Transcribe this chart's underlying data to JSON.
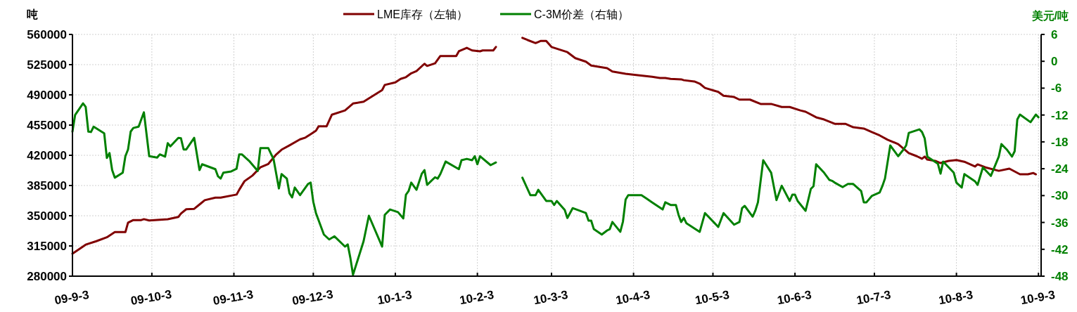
{
  "chart_data": {
    "type": "line",
    "ylabel": "吨",
    "y2label": "美元/吨",
    "legend": "top",
    "grid": true,
    "line_style": "solid",
    "marker": "none",
    "xlim": [
      "2009-09-03",
      "2010-09-04"
    ],
    "xticks": [
      {
        "value": "2009-09-03",
        "label": "09-9-3"
      },
      {
        "value": "2009-10-03",
        "label": "09-10-3"
      },
      {
        "value": "2009-11-03",
        "label": "09-11-3"
      },
      {
        "value": "2009-12-03",
        "label": "09-12-3"
      },
      {
        "value": "2010-01-03",
        "label": "10-1-3"
      },
      {
        "value": "2010-02-03",
        "label": "10-2-3"
      },
      {
        "value": "2010-03-03",
        "label": "10-3-3"
      },
      {
        "value": "2010-04-03",
        "label": "10-4-3"
      },
      {
        "value": "2010-05-03",
        "label": "10-5-3"
      },
      {
        "value": "2010-06-03",
        "label": "10-6-3"
      },
      {
        "value": "2010-07-03",
        "label": "10-7-3"
      },
      {
        "value": "2010-08-03",
        "label": "10-8-3"
      },
      {
        "value": "2010-09-03",
        "label": "10-9-3"
      }
    ],
    "ylim": [
      280000,
      560000
    ],
    "yticks": [
      280000,
      315000,
      350000,
      385000,
      420000,
      455000,
      490000,
      525000,
      560000
    ],
    "y2lim": [
      -48,
      6
    ],
    "y2ticks": [
      -48,
      -42,
      -36,
      -30,
      -24,
      -18,
      -12,
      -6,
      0,
      6
    ],
    "series": [
      {
        "name": "LME库存（左轴）",
        "color": "#800000",
        "axis": "y",
        "x": [
          "2009-09-03",
          "2009-09-08",
          "2009-09-12",
          "2009-09-16",
          "2009-09-19",
          "2009-09-23",
          "2009-09-24",
          "2009-09-26",
          "2009-09-29",
          "2009-09-30",
          "2009-10-02",
          "2009-10-09",
          "2009-10-13",
          "2009-10-14",
          "2009-10-16",
          "2009-10-19",
          "2009-10-21",
          "2009-10-23",
          "2009-10-27",
          "2009-10-29",
          "2009-11-04",
          "2009-11-05",
          "2009-11-07",
          "2009-11-10",
          "2009-11-13",
          "2009-11-16",
          "2009-11-19",
          "2009-11-21",
          "2009-11-24",
          "2009-11-28",
          "2009-11-30",
          "2009-12-02",
          "2009-12-04",
          "2009-12-05",
          "2009-12-08",
          "2009-12-10",
          "2009-12-15",
          "2009-12-18",
          "2009-12-22",
          "2009-12-24",
          "2009-12-29",
          "2009-12-30",
          "2010-01-03",
          "2010-01-05",
          "2010-01-07",
          "2010-01-09",
          "2010-01-11",
          "2010-01-14",
          "2010-01-15",
          "2010-01-18",
          "2010-01-20",
          "2010-01-26",
          "2010-01-27",
          "2010-01-30",
          "2010-02-01",
          "2010-02-04",
          "2010-02-05",
          "2010-02-09",
          "2010-02-10",
          "2010-02-15",
          "2010-02-20",
          "2010-02-22",
          "2010-02-25",
          "2010-02-27",
          "2010-03-01",
          "2010-03-03",
          "2010-03-09",
          "2010-03-12",
          "2010-03-16",
          "2010-03-18",
          "2010-03-24",
          "2010-03-26",
          "2010-03-31",
          "2010-04-04",
          "2010-04-10",
          "2010-04-13",
          "2010-04-15",
          "2010-04-17",
          "2010-04-21",
          "2010-04-22",
          "2010-04-26",
          "2010-04-28",
          "2010-04-30",
          "2010-05-05",
          "2010-05-07",
          "2010-05-11",
          "2010-05-13",
          "2010-05-17",
          "2010-05-21",
          "2010-05-25",
          "2010-05-29",
          "2010-06-01",
          "2010-06-05",
          "2010-06-07",
          "2010-06-11",
          "2010-06-14",
          "2010-06-18",
          "2010-06-22",
          "2010-06-25",
          "2010-06-29",
          "2010-07-02",
          "2010-07-05",
          "2010-07-08",
          "2010-07-12",
          "2010-07-16",
          "2010-07-19",
          "2010-07-21",
          "2010-07-22",
          "2010-07-23",
          "2010-07-26",
          "2010-07-28",
          "2010-07-31",
          "2010-08-03",
          "2010-08-06",
          "2010-08-10",
          "2010-08-11",
          "2010-08-14",
          "2010-08-19",
          "2010-08-23",
          "2010-08-27",
          "2010-08-30",
          "2010-09-01",
          "2010-09-02"
        ],
        "values": [
          306000,
          316500,
          320500,
          325000,
          331000,
          331000,
          342000,
          345000,
          345000,
          346000,
          344500,
          346000,
          348500,
          352500,
          357500,
          358000,
          363000,
          368000,
          371000,
          371000,
          374500,
          380000,
          390000,
          396500,
          406000,
          410000,
          421000,
          426500,
          431500,
          438500,
          440500,
          444500,
          448500,
          453500,
          453500,
          467000,
          472000,
          480000,
          482000,
          486000,
          495500,
          501500,
          504500,
          508500,
          510500,
          515000,
          517500,
          526000,
          523500,
          526500,
          535000,
          535000,
          540500,
          544500,
          541500,
          540500,
          541500,
          541500,
          545500,
          null,
          556000,
          553500,
          550000,
          552500,
          552500,
          545500,
          539500,
          532500,
          528500,
          524000,
          521000,
          517000,
          514500,
          513000,
          511000,
          509500,
          509500,
          508500,
          508000,
          507000,
          505500,
          503000,
          498000,
          493500,
          489000,
          487500,
          484500,
          484500,
          479500,
          479500,
          476000,
          476000,
          472000,
          470500,
          464000,
          461500,
          456500,
          456500,
          452500,
          451000,
          447000,
          443000,
          438000,
          433000,
          422500,
          419000,
          416000,
          418500,
          415000,
          413500,
          411000,
          413500,
          414500,
          412500,
          407000,
          409500,
          406000,
          402000,
          404500,
          398000,
          398000,
          399500,
          398000
        ]
      },
      {
        "name": "C-3M价差（右轴）",
        "color": "#008000",
        "axis": "y2",
        "x": [
          "2009-09-03",
          "2009-09-04",
          "2009-09-07",
          "2009-09-08",
          "2009-09-09",
          "2009-09-10",
          "2009-09-11",
          "2009-09-15",
          "2009-09-16",
          "2009-09-17",
          "2009-09-18",
          "2009-09-19",
          "2009-09-22",
          "2009-09-23",
          "2009-09-24",
          "2009-09-25",
          "2009-09-26",
          "2009-09-28",
          "2009-09-30",
          "2009-10-02",
          "2009-10-05",
          "2009-10-06",
          "2009-10-08",
          "2009-10-09",
          "2009-10-10",
          "2009-10-13",
          "2009-10-14",
          "2009-10-15",
          "2009-10-16",
          "2009-10-19",
          "2009-10-21",
          "2009-10-22",
          "2009-10-27",
          "2009-10-28",
          "2009-10-29",
          "2009-10-30",
          "2009-11-02",
          "2009-11-04",
          "2009-11-05",
          "2009-11-06",
          "2009-11-09",
          "2009-11-12",
          "2009-11-13",
          "2009-11-16",
          "2009-11-18",
          "2009-11-20",
          "2009-11-21",
          "2009-11-23",
          "2009-11-24",
          "2009-11-25",
          "2009-11-26",
          "2009-11-28",
          "2009-12-01",
          "2009-12-02",
          "2009-12-03",
          "2009-12-04",
          "2009-12-07",
          "2009-12-09",
          "2009-12-11",
          "2009-12-15",
          "2009-12-16",
          "2009-12-17",
          "2009-12-18",
          "2009-12-22",
          "2009-12-24",
          "2009-12-29",
          "2009-12-30",
          "2010-01-01",
          "2010-01-04",
          "2010-01-06",
          "2010-01-07",
          "2010-01-08",
          "2010-01-09",
          "2010-01-11",
          "2010-01-13",
          "2010-01-14",
          "2010-01-15",
          "2010-01-18",
          "2010-01-19",
          "2010-01-20",
          "2010-01-22",
          "2010-01-27",
          "2010-01-28",
          "2010-01-30",
          "2010-02-01",
          "2010-02-02",
          "2010-02-03",
          "2010-02-04",
          "2010-02-08",
          "2010-02-10",
          "2010-02-15",
          "2010-02-20",
          "2010-02-23",
          "2010-02-25",
          "2010-02-26",
          "2010-03-01",
          "2010-03-03",
          "2010-03-04",
          "2010-03-05",
          "2010-03-08",
          "2010-03-09",
          "2010-03-11",
          "2010-03-16",
          "2010-03-17",
          "2010-03-18",
          "2010-03-19",
          "2010-03-22",
          "2010-03-24",
          "2010-03-25",
          "2010-03-26",
          "2010-03-29",
          "2010-03-30",
          "2010-03-31",
          "2010-04-01",
          "2010-04-06",
          "2010-04-08",
          "2010-04-10",
          "2010-04-14",
          "2010-04-15",
          "2010-04-17",
          "2010-04-19",
          "2010-04-20",
          "2010-04-21",
          "2010-04-22",
          "2010-04-23",
          "2010-04-28",
          "2010-04-30",
          "2010-05-05",
          "2010-05-07",
          "2010-05-11",
          "2010-05-13",
          "2010-05-14",
          "2010-05-15",
          "2010-05-18",
          "2010-05-19",
          "2010-05-20",
          "2010-05-22",
          "2010-05-25",
          "2010-05-27",
          "2010-05-29",
          "2010-06-01",
          "2010-06-02",
          "2010-06-03",
          "2010-06-04",
          "2010-06-07",
          "2010-06-08",
          "2010-06-09",
          "2010-06-10",
          "2010-06-11",
          "2010-06-14",
          "2010-06-16",
          "2010-06-17",
          "2010-06-18",
          "2010-06-21",
          "2010-06-23",
          "2010-06-25",
          "2010-06-28",
          "2010-06-29",
          "2010-06-30",
          "2010-07-02",
          "2010-07-05",
          "2010-07-06",
          "2010-07-07",
          "2010-07-09",
          "2010-07-12",
          "2010-07-14",
          "2010-07-15",
          "2010-07-16",
          "2010-07-20",
          "2010-07-21",
          "2010-07-22",
          "2010-07-23",
          "2010-07-27",
          "2010-07-28",
          "2010-07-29",
          "2010-08-02",
          "2010-08-03",
          "2010-08-05",
          "2010-08-06",
          "2010-08-10",
          "2010-08-11",
          "2010-08-13",
          "2010-08-16",
          "2010-08-19",
          "2010-08-20",
          "2010-08-22",
          "2010-08-24",
          "2010-08-25",
          "2010-08-26",
          "2010-08-27",
          "2010-08-31",
          "2010-09-02",
          "2010-09-03"
        ],
        "values": [
          -15.7,
          -12,
          -9.4,
          -10.2,
          -15.7,
          -15.8,
          -14.6,
          -16.1,
          -21.6,
          -20.5,
          -24.3,
          -26,
          -24.9,
          -21.2,
          -19.7,
          -15.7,
          -14.9,
          -14.6,
          -11.4,
          -21.2,
          -21.5,
          -20.8,
          -21.3,
          -18.3,
          -19,
          -17.1,
          -17.2,
          -19.7,
          -19.7,
          -17.1,
          -24.3,
          -23,
          -24.1,
          -25.7,
          -26.2,
          -24.9,
          -24.6,
          -24,
          -20.8,
          -20.8,
          -22.4,
          -24.5,
          -19.4,
          -19.4,
          -21.9,
          -28.4,
          -25.2,
          -26.2,
          -29.5,
          -30.4,
          -28.2,
          -29.9,
          -27.4,
          -27.1,
          -31.4,
          -33.9,
          -38.7,
          -39.8,
          -39.1,
          -41.4,
          -40.9,
          -43.9,
          -47.7,
          -40.2,
          -34.5,
          -41.4,
          -34.3,
          -33.1,
          -33.7,
          -35.1,
          -29.8,
          -29,
          -27.1,
          -28.7,
          -25.1,
          -24.3,
          -27.6,
          -25.9,
          -26.2,
          -25.2,
          -22.4,
          -24.1,
          -22.1,
          -21.8,
          -22.1,
          -21.2,
          -23,
          -21.2,
          -23.2,
          -22.6,
          null,
          -26,
          -29.9,
          -29.9,
          -28.7,
          -31.2,
          -31.2,
          -32.1,
          -31.2,
          -33.2,
          -35,
          -32.8,
          -33.9,
          -35.6,
          -35.6,
          -37.5,
          -38.7,
          -37.8,
          -37.5,
          -35.9,
          -38.1,
          -35.8,
          -30.9,
          -29.9,
          -29.9,
          -30.7,
          -31.5,
          -33.1,
          -31.5,
          -32.1,
          -32.1,
          -34.3,
          -35.9,
          -35,
          -36.2,
          -38.1,
          -33.9,
          -37,
          -33.9,
          -36.5,
          -35.9,
          -32.8,
          -32.3,
          -34.7,
          -33.4,
          -31.5,
          -22.1,
          -24.9,
          -31,
          -27.8,
          -31.2,
          -29.8,
          -29.8,
          -31.2,
          -33.4,
          -31,
          -28.5,
          -27.9,
          -23,
          -24.9,
          -26.5,
          -26.7,
          -27.1,
          -28.1,
          -27.4,
          -27.4,
          -29,
          -31.5,
          -31.5,
          -30.1,
          -29.3,
          -27.9,
          -26.2,
          -18.8,
          -21.2,
          -19.7,
          -18.8,
          -16,
          -15.2,
          -15.8,
          -17.2,
          -21.3,
          -22.9,
          -25.1,
          -22.4,
          -24.9,
          -27.1,
          -28.2,
          -25.2,
          -26.8,
          -27.6,
          -23.7,
          -25.6,
          -21.3,
          -18.5,
          -19.7,
          -21.3,
          -20.1,
          -13,
          -11.9,
          -13.6,
          -11.9,
          -12.5
        ]
      }
    ]
  }
}
